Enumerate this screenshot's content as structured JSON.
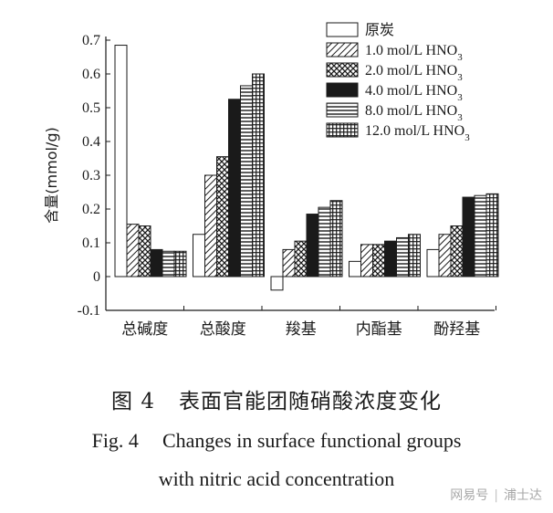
{
  "chart_data": {
    "type": "bar",
    "ylabel": "含量(mmol/g)",
    "ylim": [
      -0.1,
      0.7
    ],
    "yticks": [
      -0.1,
      0,
      0.1,
      0.2,
      0.3,
      0.4,
      0.5,
      0.6,
      0.7
    ],
    "categories": [
      "总碱度",
      "总酸度",
      "羧基",
      "内酯基",
      "酚羟基"
    ],
    "series": [
      {
        "name": "原炭",
        "pattern": "white",
        "values": [
          0.685,
          0.125,
          -0.04,
          0.045,
          0.08
        ]
      },
      {
        "name": "1.0 mol/L HNO",
        "sub": "3",
        "pattern": "diag",
        "values": [
          0.155,
          0.3,
          0.08,
          0.095,
          0.125
        ]
      },
      {
        "name": "2.0 mol/L HNO",
        "sub": "3",
        "pattern": "cross",
        "values": [
          0.15,
          0.355,
          0.105,
          0.095,
          0.15
        ]
      },
      {
        "name": "4.0 mol/L HNO",
        "sub": "3",
        "pattern": "black",
        "values": [
          0.08,
          0.525,
          0.185,
          0.105,
          0.235
        ]
      },
      {
        "name": "8.0 mol/L HNO",
        "sub": "3",
        "pattern": "hlines",
        "values": [
          0.075,
          0.565,
          0.205,
          0.115,
          0.24
        ]
      },
      {
        "name": "12.0 mol/L HNO",
        "sub": "3",
        "pattern": "grid",
        "values": [
          0.075,
          0.6,
          0.225,
          0.125,
          0.245
        ]
      }
    ]
  },
  "caption": {
    "cn_fig": "图 4",
    "cn_title": "表面官能团随硝酸浓度变化",
    "en_fig": "Fig. 4",
    "en_line1": "Changes in surface functional groups",
    "en_line2": "with nitric acid concentration"
  },
  "watermark": {
    "source": "网易号",
    "author": "浦士达"
  },
  "colors": {
    "ink": "#1a1a1a",
    "background": "#ffffff"
  }
}
